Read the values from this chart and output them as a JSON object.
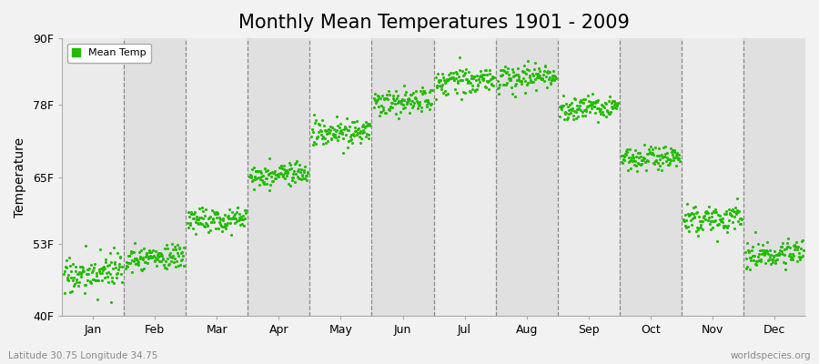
{
  "title": "Monthly Mean Temperatures 1901 - 2009",
  "ylabel": "Temperature",
  "ytick_labels": [
    "40F",
    "53F",
    "65F",
    "78F",
    "90F"
  ],
  "ytick_values": [
    40,
    53,
    65,
    78,
    90
  ],
  "ylim": [
    40,
    90
  ],
  "months": [
    "Jan",
    "Feb",
    "Mar",
    "Apr",
    "May",
    "Jun",
    "Jul",
    "Aug",
    "Sep",
    "Oct",
    "Nov",
    "Dec"
  ],
  "xlim": [
    0,
    12
  ],
  "dot_color": "#22BB00",
  "bg_color": "#f2f2f2",
  "plot_bg_color_light": "#ebebeb",
  "plot_bg_color_dark": "#e0e0e0",
  "legend_label": "Mean Temp",
  "subtitle_left": "Latitude 30.75 Longitude 34.75",
  "subtitle_right": "worldspecies.org",
  "title_fontsize": 15,
  "axis_label_fontsize": 10,
  "tick_fontsize": 9,
  "dot_size": 5,
  "n_years": 109,
  "month_mean_temps_F": [
    47.5,
    50.5,
    57.5,
    65.5,
    73.0,
    78.5,
    82.5,
    83.0,
    77.5,
    68.5,
    57.5,
    51.0
  ],
  "month_temp_spread_F": [
    3.5,
    2.5,
    2.5,
    2.5,
    2.5,
    2.5,
    2.5,
    2.5,
    2.5,
    2.5,
    2.5,
    2.5
  ],
  "month_trend_F": [
    0.008,
    0.006,
    0.006,
    0.006,
    0.006,
    0.006,
    0.006,
    0.006,
    0.006,
    0.006,
    0.006,
    0.006
  ]
}
